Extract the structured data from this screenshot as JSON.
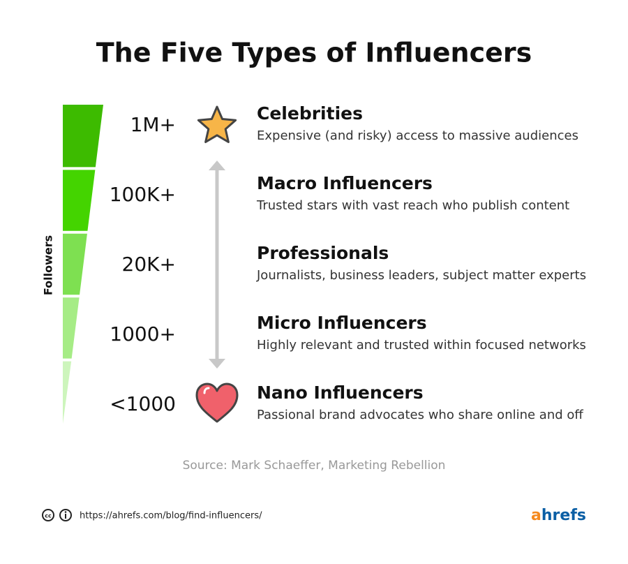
{
  "header": {
    "title": "The Five Types of Influencers"
  },
  "axis_label": "Followers",
  "tiers": [
    {
      "followers": "1M+",
      "name": "Celebrities",
      "description": "Expensive (and risky) access to massive audiences"
    },
    {
      "followers": "100K+",
      "name": "Macro Influencers",
      "description": "Trusted stars with vast reach who publish content"
    },
    {
      "followers": "20K+",
      "name": "Professionals",
      "description": "Journalists, business leaders, subject matter experts"
    },
    {
      "followers": "1000+",
      "name": "Micro Influencers",
      "description": "Highly relevant and trusted within focused networks"
    },
    {
      "followers": "<1000",
      "name": "Nano Influencers",
      "description": "Passional brand advocates who share online and off"
    }
  ],
  "source": "Source: Mark Schaeffer, Marketing Rebellion",
  "footer": {
    "url": "https://ahrefs.com/blog/find-influencers/",
    "logo": {
      "accent": "a",
      "rest": "hrefs"
    }
  }
}
